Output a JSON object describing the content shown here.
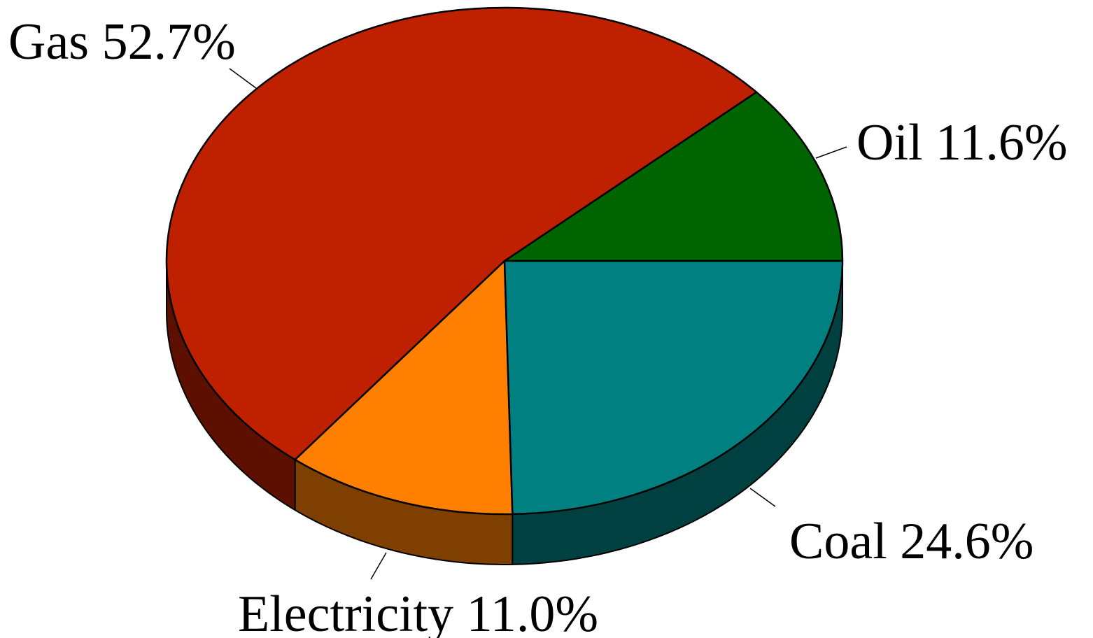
{
  "chart_data": {
    "type": "pie",
    "style": "3d",
    "start_angle": "3 o'clock, counter-clockwise",
    "slices": [
      {
        "name": "Oil",
        "value": 11.6,
        "label": "Oil  11.6%",
        "color": "#006400",
        "side_color": "#003300"
      },
      {
        "name": "Gas",
        "value": 52.7,
        "label": "Gas  52.7%",
        "color": "#BF2100",
        "side_color": "#5E1000"
      },
      {
        "name": "Electricity",
        "value": 11.0,
        "label": "Electricity  11.0%",
        "color": "#FF8000",
        "side_color": "#7F3F00"
      },
      {
        "name": "Coal",
        "value": 24.6,
        "label": "Coal  24.6%",
        "color": "#008080",
        "side_color": "#004040"
      }
    ]
  }
}
